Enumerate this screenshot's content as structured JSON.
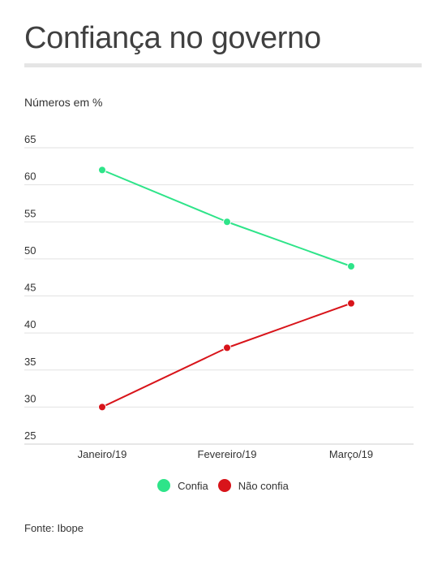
{
  "title": "Confiança no governo",
  "subtitle": "Números em %",
  "source": "Fonte: Ibope",
  "chart_data": {
    "type": "line",
    "title": "Confiança no governo",
    "ylabel": "Números em %",
    "xlabel": "",
    "categories": [
      "Janeiro/19",
      "Fevereiro/19",
      "Março/19"
    ],
    "series": [
      {
        "name": "Confia",
        "color": "#2ee489",
        "values": [
          62,
          55,
          49
        ]
      },
      {
        "name": "Não confia",
        "color": "#d8141a",
        "values": [
          30,
          38,
          44
        ]
      }
    ],
    "ylim": [
      25,
      65
    ],
    "yticks": [
      "25",
      "30",
      "35",
      "40",
      "45",
      "50",
      "55",
      "60",
      "65"
    ],
    "grid": true,
    "legend_position": "bottom-center"
  }
}
